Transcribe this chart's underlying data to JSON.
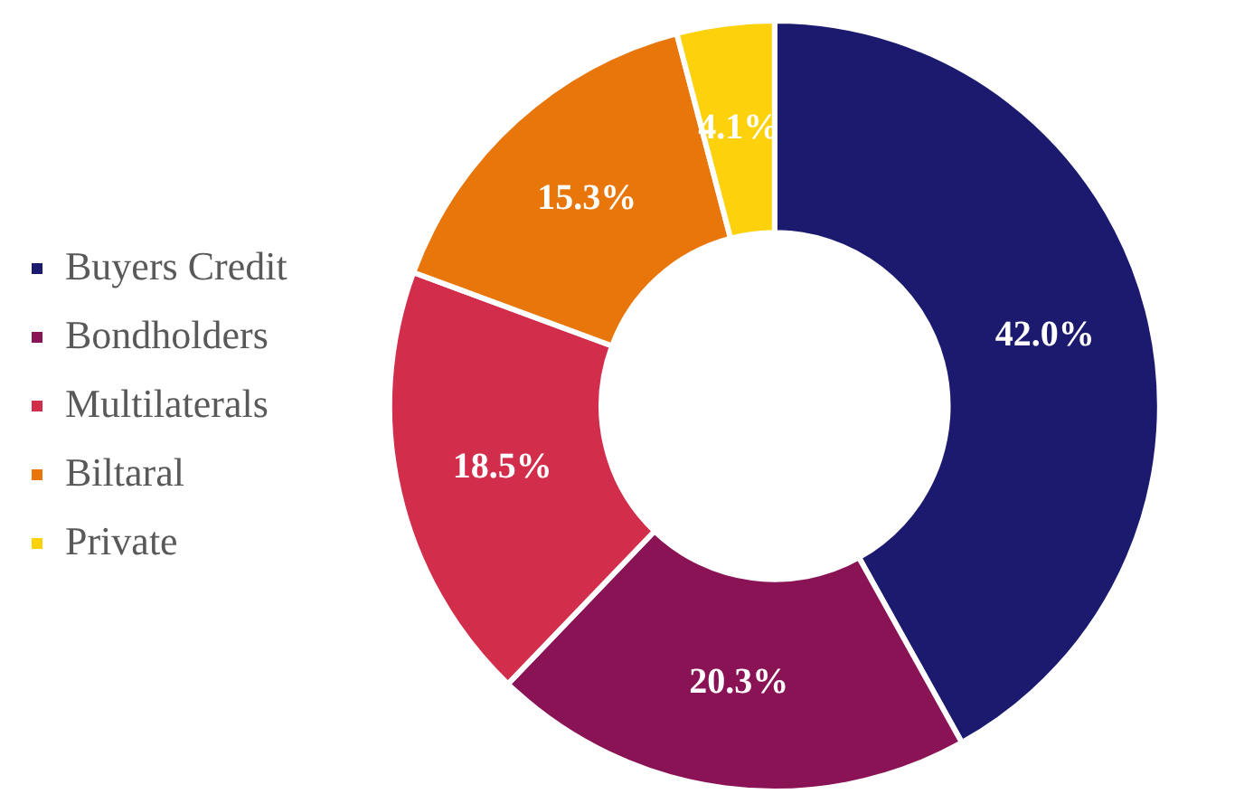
{
  "chart_data": {
    "type": "donut",
    "categories": [
      "Buyers Credit",
      "Bondholders",
      "Multilaterals",
      "Biltaral",
      "Private"
    ],
    "values": [
      42.0,
      20.3,
      18.5,
      15.3,
      4.1
    ],
    "value_labels": [
      "42.0%",
      "20.3%",
      "18.5%",
      "15.3%",
      "4.1%"
    ],
    "colors": [
      "#1b1a6f",
      "#8a1356",
      "#d22e4b",
      "#e8760b",
      "#fdd10c"
    ],
    "legend": "left"
  }
}
